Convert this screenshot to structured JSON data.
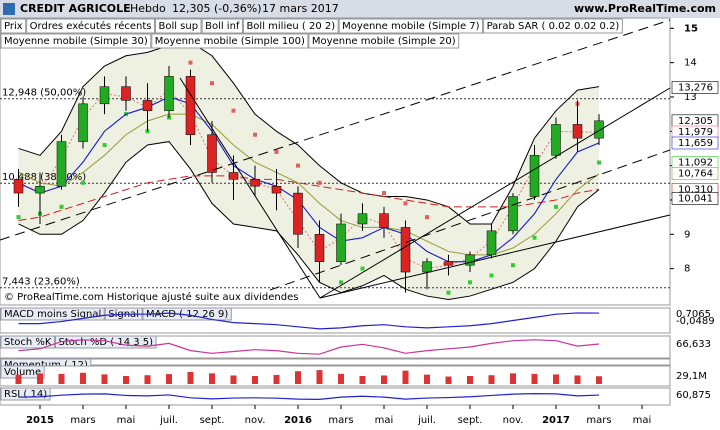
{
  "header": {
    "symbol": "CREDIT AGRICOLE",
    "period": "Hebdo",
    "quote": "12,305 (-0,36%)",
    "date": "17 mars 2017",
    "site": "www.ProRealTime.com"
  },
  "toolbar": [
    "Prix",
    "Ordres exécutés récents"
  ],
  "footnote": "© ProRealTime.com Historique ajusté suite aux dividendes",
  "chart_data": {
    "type": "candlestick",
    "categories": [
      null,
      "2015",
      null,
      "mars",
      null,
      "mai",
      null,
      "juil.",
      null,
      "sept.",
      null,
      "nov.",
      null,
      "2016",
      null,
      "mars",
      null,
      "mai",
      null,
      "juil.",
      null,
      "sept.",
      null,
      "nov.",
      null,
      "2017",
      null,
      "mars",
      null,
      "mai"
    ],
    "open": [
      10.6,
      10.2,
      10.4,
      11.7,
      12.8,
      13.3,
      12.9,
      12.6,
      13.6,
      11.9,
      10.8,
      10.6,
      10.4,
      10.2,
      9.0,
      8.2,
      9.3,
      9.6,
      9.2,
      7.9,
      8.2,
      8.1,
      8.4,
      9.1,
      10.1,
      11.3,
      12.2,
      11.8,
      null,
      null
    ],
    "high": [
      10.9,
      10.8,
      11.9,
      13.0,
      13.6,
      13.6,
      13.4,
      13.9,
      13.8,
      12.3,
      11.3,
      11.0,
      10.9,
      10.4,
      9.4,
      9.6,
      9.9,
      9.8,
      9.4,
      8.3,
      8.4,
      8.5,
      9.3,
      10.2,
      11.6,
      12.4,
      12.9,
      12.5,
      null,
      null
    ],
    "low": [
      9.8,
      9.3,
      10.3,
      11.5,
      12.5,
      12.6,
      12.0,
      12.4,
      11.6,
      10.5,
      10.0,
      10.1,
      9.7,
      8.6,
      7.6,
      8.1,
      9.1,
      8.9,
      7.3,
      7.4,
      7.8,
      7.9,
      8.3,
      9.0,
      10.0,
      11.2,
      11.4,
      11.6,
      null,
      null
    ],
    "close": [
      10.2,
      10.4,
      11.7,
      12.8,
      13.3,
      12.9,
      12.6,
      13.6,
      11.9,
      10.8,
      10.6,
      10.4,
      10.2,
      9.0,
      8.2,
      9.3,
      9.6,
      9.2,
      7.9,
      8.2,
      8.1,
      8.4,
      9.1,
      10.1,
      11.3,
      12.2,
      11.8,
      12.305,
      null,
      null
    ],
    "up_color": "#22aa22",
    "down_color": "#dd2222",
    "series": [
      {
        "name": "Boll sup",
        "color": "#000000",
        "style": "line",
        "values": [
          11.5,
          11.3,
          12.0,
          13.3,
          13.9,
          14.2,
          14.3,
          14.5,
          14.6,
          14.2,
          13.4,
          12.5,
          12.0,
          11.6,
          11.0,
          10.5,
          10.2,
          10.1,
          10.1,
          10.0,
          9.8,
          9.3,
          9.3,
          10.4,
          11.8,
          12.6,
          13.2,
          13.3,
          null,
          null
        ]
      },
      {
        "name": "Boll inf",
        "color": "#000000",
        "style": "line",
        "values": [
          9.3,
          9.0,
          9.0,
          9.4,
          10.2,
          11.1,
          11.6,
          11.7,
          10.9,
          9.9,
          9.3,
          9.2,
          9.1,
          8.4,
          7.6,
          7.3,
          7.5,
          7.8,
          7.4,
          7.2,
          7.1,
          7.2,
          7.4,
          7.6,
          8.0,
          8.8,
          9.8,
          10.3,
          null,
          null
        ]
      },
      {
        "name": "Boll milieu ( 20 2)",
        "color": "#2222cc",
        "style": "line",
        "values": [
          10.5,
          10.2,
          10.4,
          11.1,
          12.0,
          12.5,
          12.7,
          13.0,
          12.8,
          12.0,
          11.0,
          10.6,
          10.4,
          10.0,
          9.2,
          8.8,
          8.9,
          9.2,
          9.0,
          8.5,
          8.2,
          8.2,
          8.4,
          8.9,
          9.6,
          10.6,
          11.4,
          11.66,
          null,
          null
        ]
      },
      {
        "name": "Moyenne mobile (Simple 7)",
        "color": "#e07070",
        "style": "dotted",
        "values": [
          10.4,
          10.3,
          11.2,
          12.4,
          13.1,
          13.0,
          12.7,
          13.2,
          12.5,
          11.2,
          10.7,
          10.5,
          10.3,
          9.4,
          8.5,
          8.9,
          9.5,
          9.3,
          8.3,
          8.0,
          8.1,
          8.3,
          8.8,
          9.8,
          11.0,
          12.0,
          11.98,
          11.979,
          null,
          null
        ]
      },
      {
        "name": "Parab SAR ( 0.02 0.02 0.2)",
        "color": "#33cc33",
        "style": "dots",
        "values": [
          9.5,
          9.6,
          9.8,
          10.5,
          11.6,
          12.5,
          12.0,
          12.4,
          14.0,
          13.4,
          12.6,
          11.9,
          11.4,
          11.0,
          10.5,
          7.6,
          8.0,
          10.2,
          9.9,
          9.5,
          7.3,
          7.6,
          7.8,
          8.1,
          8.9,
          9.8,
          12.8,
          11.09,
          null,
          null
        ]
      },
      {
        "name": "Moyenne mobile (Simple 30)",
        "color": "#999933",
        "style": "line",
        "values": [
          10.8,
          10.5,
          10.4,
          10.8,
          11.3,
          11.9,
          12.3,
          12.5,
          12.5,
          12.2,
          11.6,
          11.1,
          10.8,
          10.5,
          9.9,
          9.4,
          9.2,
          9.2,
          9.1,
          8.8,
          8.5,
          8.4,
          8.4,
          8.6,
          9.0,
          9.6,
          10.3,
          10.76,
          null,
          null
        ]
      },
      {
        "name": "Moyenne mobile (Simple 100)",
        "color": "#cc2222",
        "style": "dashed",
        "values": [
          9.4,
          9.5,
          9.7,
          9.9,
          10.1,
          10.3,
          10.5,
          10.6,
          10.7,
          10.7,
          10.7,
          10.6,
          10.6,
          10.5,
          10.4,
          10.3,
          10.2,
          10.1,
          10.0,
          9.9,
          9.8,
          9.8,
          9.8,
          9.8,
          9.9,
          10.0,
          10.2,
          10.31,
          null,
          null
        ]
      },
      {
        "name": "Moyenne mobile (Simple 20)",
        "color": "#2222cc",
        "style": "line",
        "values": [
          10.5,
          10.2,
          10.4,
          11.1,
          12.0,
          12.5,
          12.7,
          13.0,
          12.8,
          12.0,
          11.0,
          10.6,
          10.4,
          10.0,
          9.2,
          8.8,
          8.9,
          9.2,
          9.0,
          8.5,
          8.2,
          8.2,
          8.4,
          8.9,
          9.6,
          10.6,
          11.4,
          11.66,
          null,
          null
        ]
      }
    ],
    "ylim": [
      6.94,
      15.3
    ],
    "yticks": [
      8,
      9,
      10,
      11,
      12,
      13,
      14,
      15
    ],
    "levels": [
      {
        "value": 12.948,
        "label": "12,948 (50,00%)"
      },
      {
        "value": 10.488,
        "label": "10,488 (38,20%)"
      },
      {
        "value": 7.443,
        "label": "7,443 (23,60%)"
      }
    ],
    "right_labels": [
      {
        "value": 13.276,
        "label": "13,276",
        "color": "#000000"
      },
      {
        "value": 12.305,
        "label": "12,305",
        "color": "#000000"
      },
      {
        "value": 11.979,
        "label": "11,979",
        "color": "#e07070"
      },
      {
        "value": 11.659,
        "label": "11,659",
        "color": "#2222cc"
      },
      {
        "value": 11.092,
        "label": "11,092",
        "color": "#33cc33"
      },
      {
        "value": 10.764,
        "label": "10,764",
        "color": "#999933"
      },
      {
        "value": 10.31,
        "label": "10,310",
        "color": "#cc2222"
      },
      {
        "value": 10.041,
        "label": "10,041",
        "color": "#000000"
      }
    ]
  },
  "panels": [
    {
      "type": "line",
      "labels": [
        "MACD moins Signal",
        "Signal",
        "MACD ( 12 26 9)"
      ],
      "color": "#2222cc",
      "ylim": [
        -1,
        1
      ],
      "values": [
        -0.3,
        -0.3,
        -0.1,
        0.2,
        0.5,
        0.6,
        0.6,
        0.7,
        0.5,
        0.1,
        -0.2,
        -0.3,
        -0.4,
        -0.6,
        -0.8,
        -0.7,
        -0.5,
        -0.4,
        -0.6,
        -0.7,
        -0.6,
        -0.5,
        -0.3,
        0.0,
        0.3,
        0.6,
        0.72,
        0.7065,
        null,
        null
      ],
      "right_labels": [
        {
          "value": 0.7065,
          "label": "0,7065"
        },
        {
          "value": -0.0489,
          "label": "-0,0489"
        }
      ]
    },
    {
      "type": "line",
      "labels": [
        "Stoch %K",
        "Stoch %D ( 14 3 5)"
      ],
      "color": "#cc3399",
      "ylim": [
        0,
        100
      ],
      "values": [
        30,
        40,
        80,
        90,
        85,
        60,
        55,
        70,
        30,
        15,
        25,
        35,
        30,
        15,
        10,
        50,
        65,
        45,
        15,
        30,
        40,
        50,
        70,
        85,
        90,
        85,
        55,
        66.633,
        null,
        null
      ],
      "right_labels": [
        {
          "value": 66.633,
          "label": "66,633"
        }
      ]
    },
    {
      "type": "none",
      "labels": [
        "Momentum ( 12)"
      ]
    },
    {
      "type": "bar",
      "labels": [
        "Volume"
      ],
      "color": "#dd3333",
      "ylim": [
        0,
        60
      ],
      "values": [
        35,
        40,
        38,
        42,
        36,
        30,
        33,
        37,
        45,
        40,
        32,
        30,
        34,
        48,
        52,
        38,
        30,
        32,
        50,
        35,
        28,
        30,
        33,
        40,
        38,
        36,
        32,
        29.1,
        null,
        null
      ],
      "right_labels": [
        {
          "value": 29.1,
          "label": "29,1M"
        }
      ]
    },
    {
      "type": "line",
      "labels": [
        "RSI ( 14)"
      ],
      "color": "#2222cc",
      "ylim": [
        0,
        100
      ],
      "values": [
        45,
        48,
        60,
        68,
        70,
        58,
        55,
        62,
        40,
        32,
        38,
        40,
        37,
        30,
        28,
        45,
        52,
        45,
        30,
        38,
        42,
        48,
        58,
        68,
        72,
        70,
        55,
        60.875,
        null,
        null
      ],
      "right_labels": [
        {
          "value": 60.875,
          "label": "60,875"
        }
      ]
    }
  ]
}
